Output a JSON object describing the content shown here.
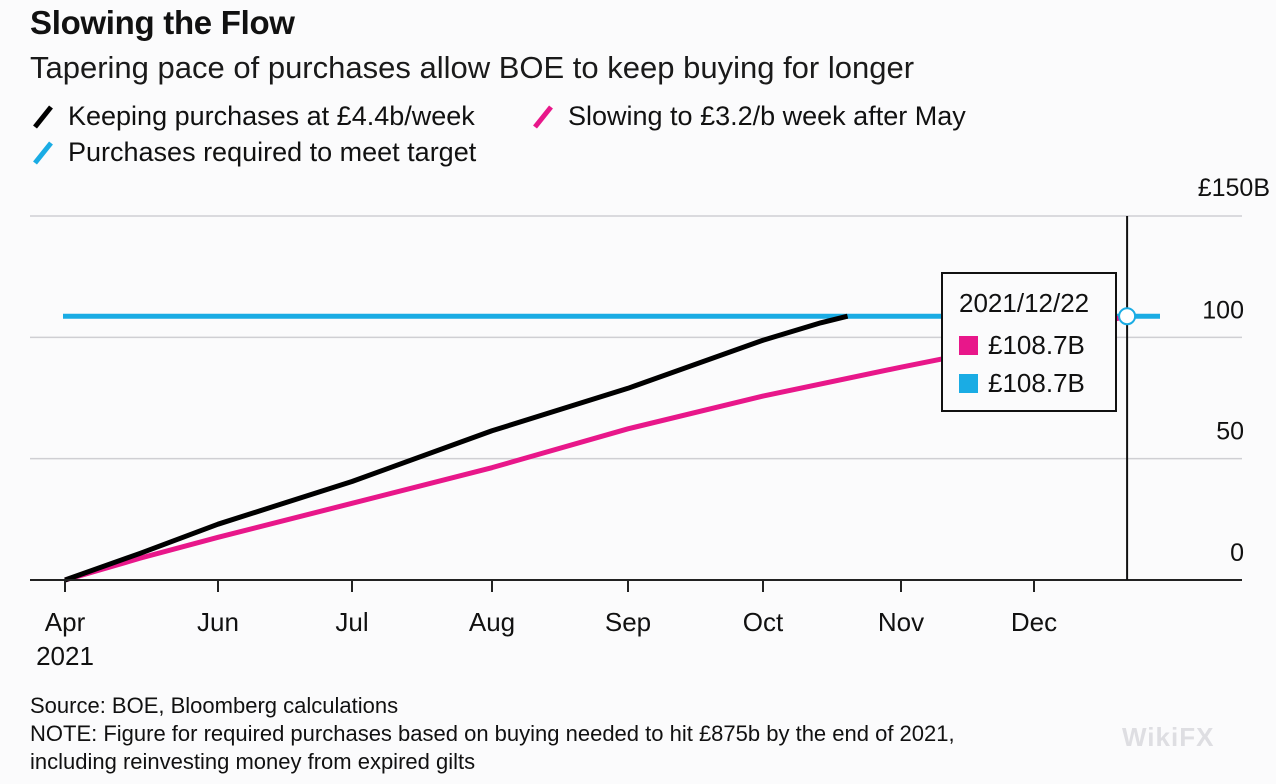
{
  "header": {
    "title": "Slowing the Flow",
    "subtitle": "Tapering pace of purchases allow BOE to keep buying for longer"
  },
  "legend": [
    {
      "label": "Keeping purchases at £4.4b/week",
      "color": "#000000",
      "icon": "slash-line-icon"
    },
    {
      "label": "Slowing to £3.2/b week after May",
      "color": "#e8178a",
      "icon": "slash-line-icon"
    },
    {
      "label": "Purchases required to meet target",
      "color": "#1aace4",
      "icon": "slash-line-icon"
    }
  ],
  "tooltip": {
    "date": "2021/12/22",
    "rows": [
      {
        "color": "#e8178a",
        "value": "£108.7B"
      },
      {
        "color": "#1aace4",
        "value": "£108.7B"
      }
    ]
  },
  "footer": {
    "source": "Source: BOE, Bloomberg calculations",
    "note_line1": "NOTE: Figure for required purchases based on buying needed to hit £875b by the end of 2021,",
    "note_line2": "including reinvesting money from expired gilts"
  },
  "watermark": "WikiFX",
  "chart_data": {
    "type": "line",
    "title": "Slowing the Flow",
    "subtitle": "Tapering pace of purchases allow BOE to keep buying for longer",
    "xlabel": "",
    "ylabel": "",
    "y_unit_label": "£150B",
    "ylim": [
      0,
      150
    ],
    "yticks": [
      0,
      50,
      100,
      150
    ],
    "ytick_labels": [
      "0",
      "50",
      "100",
      "£150B"
    ],
    "y_axis_side": "right",
    "grid": true,
    "legend_position": "top-left",
    "x_ticks": [
      {
        "label": "Apr",
        "sublabel": "2021",
        "date": "2021-04-01"
      },
      {
        "label": "Jun",
        "date": "2021-06-01"
      },
      {
        "label": "Jul",
        "date": "2021-07-01"
      },
      {
        "label": "Aug",
        "date": "2021-08-01"
      },
      {
        "label": "Sep",
        "date": "2021-09-01"
      },
      {
        "label": "Oct",
        "date": "2021-10-01"
      },
      {
        "label": "Nov",
        "date": "2021-11-01"
      },
      {
        "label": "Dec",
        "date": "2021-12-01"
      }
    ],
    "xlim": [
      "2021-03-15",
      "2022-01-31"
    ],
    "crosshair": {
      "date": "2021-12-22"
    },
    "series": [
      {
        "name": "Keeping purchases at £4.4b/week",
        "color": "#000000",
        "points": [
          {
            "date": "2021-04-01",
            "value": 0
          },
          {
            "date": "2021-05-01",
            "value": 11
          },
          {
            "date": "2021-06-01",
            "value": 23
          },
          {
            "date": "2021-07-01",
            "value": 40.6
          },
          {
            "date": "2021-08-01",
            "value": 61.5
          },
          {
            "date": "2021-09-01",
            "value": 79
          },
          {
            "date": "2021-10-01",
            "value": 98.8
          },
          {
            "date": "2021-10-14",
            "value": 106
          },
          {
            "date": "2021-10-20",
            "value": 108.7
          }
        ]
      },
      {
        "name": "Slowing to £3.2/b week after May",
        "color": "#e8178a",
        "points": [
          {
            "date": "2021-04-01",
            "value": 0
          },
          {
            "date": "2021-05-01",
            "value": 9
          },
          {
            "date": "2021-06-01",
            "value": 17.6
          },
          {
            "date": "2021-07-01",
            "value": 31.6
          },
          {
            "date": "2021-08-01",
            "value": 46.3
          },
          {
            "date": "2021-09-01",
            "value": 62.3
          },
          {
            "date": "2021-10-01",
            "value": 75.8
          },
          {
            "date": "2021-11-01",
            "value": 87.7
          },
          {
            "date": "2021-11-10",
            "value": 91
          },
          {
            "date": "2021-12-22",
            "value": 108.7
          }
        ]
      },
      {
        "name": "Purchases required to meet target",
        "color": "#1aace4",
        "points": [
          {
            "date": "2021-04-01",
            "value": 108.7
          },
          {
            "date": "2022-01-01",
            "value": 108.7
          }
        ]
      }
    ]
  }
}
